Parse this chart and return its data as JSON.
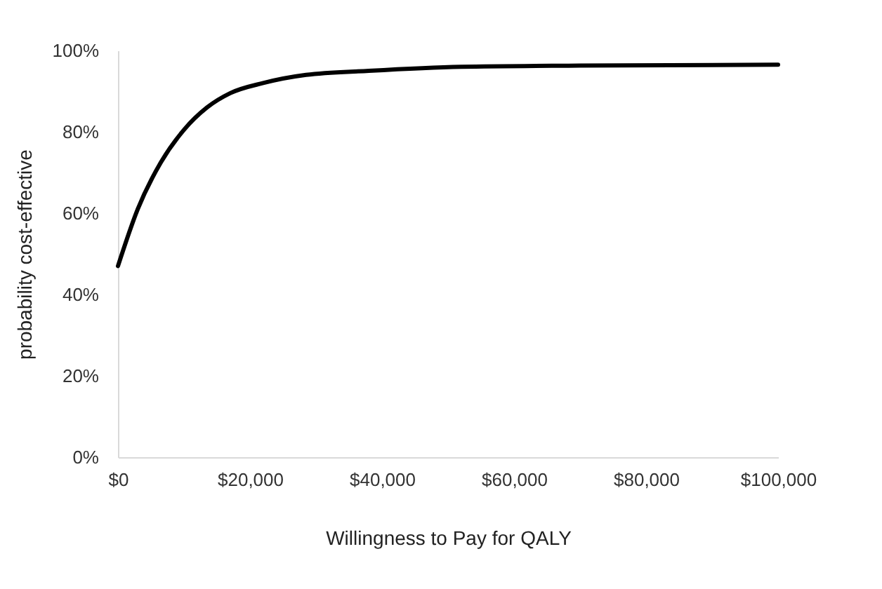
{
  "chart_data": {
    "type": "line",
    "xlabel": "Willingness to Pay for QALY",
    "ylabel": "probability cost-effective",
    "x": [
      0,
      3000,
      6500,
      10000,
      13500,
      17000,
      22000,
      28500,
      38000,
      52000,
      70000,
      100000
    ],
    "series": [
      {
        "color": "#000000",
        "values": [
          47,
          61,
          72.5,
          80.5,
          86,
          89.5,
          92,
          94,
          95,
          96,
          96.3,
          96.5
        ]
      }
    ],
    "xlim": [
      0,
      100000
    ],
    "xticks": [
      {
        "value": 0,
        "label": "$0"
      },
      {
        "value": 20000,
        "label": "$20,000"
      },
      {
        "value": 40000,
        "label": "$40,000"
      },
      {
        "value": 60000,
        "label": "$60,000"
      },
      {
        "value": 80000,
        "label": "$80,000"
      },
      {
        "value": 100000,
        "label": "$100,000"
      }
    ],
    "ylim": [
      0,
      100
    ],
    "yticks": [
      {
        "value": 0,
        "label": "0%"
      },
      {
        "value": 20,
        "label": "20%"
      },
      {
        "value": 40,
        "label": "40%"
      },
      {
        "value": 60,
        "label": "60%"
      },
      {
        "value": 80,
        "label": "80%"
      },
      {
        "value": 100,
        "label": "100%"
      }
    ],
    "grid": false,
    "marker": "none",
    "line_style": "solid"
  }
}
